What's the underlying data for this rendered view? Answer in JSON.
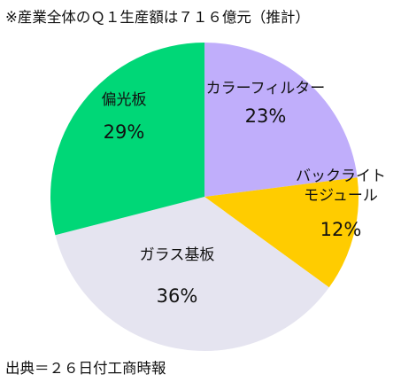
{
  "notes": {
    "top": "※産業全体のＱ１生産額は７１６億元（推計）",
    "bottom": "出典＝２６日付工商時報"
  },
  "chart_data": {
    "type": "pie",
    "unit": "%",
    "start_angle_deg": 0,
    "direction": "clockwise",
    "slices": [
      {
        "label": [
          "カラーフィルター"
        ],
        "value": 23,
        "color": "#c0aefb"
      },
      {
        "label": [
          "バックライト",
          "モジュール"
        ],
        "value": 12,
        "color": "#ffcc00"
      },
      {
        "label": [
          "ガラス基板"
        ],
        "value": 36,
        "color": "#e5e4f0"
      },
      {
        "label": [
          "偏光板"
        ],
        "value": 29,
        "color": "#00d777"
      }
    ]
  }
}
